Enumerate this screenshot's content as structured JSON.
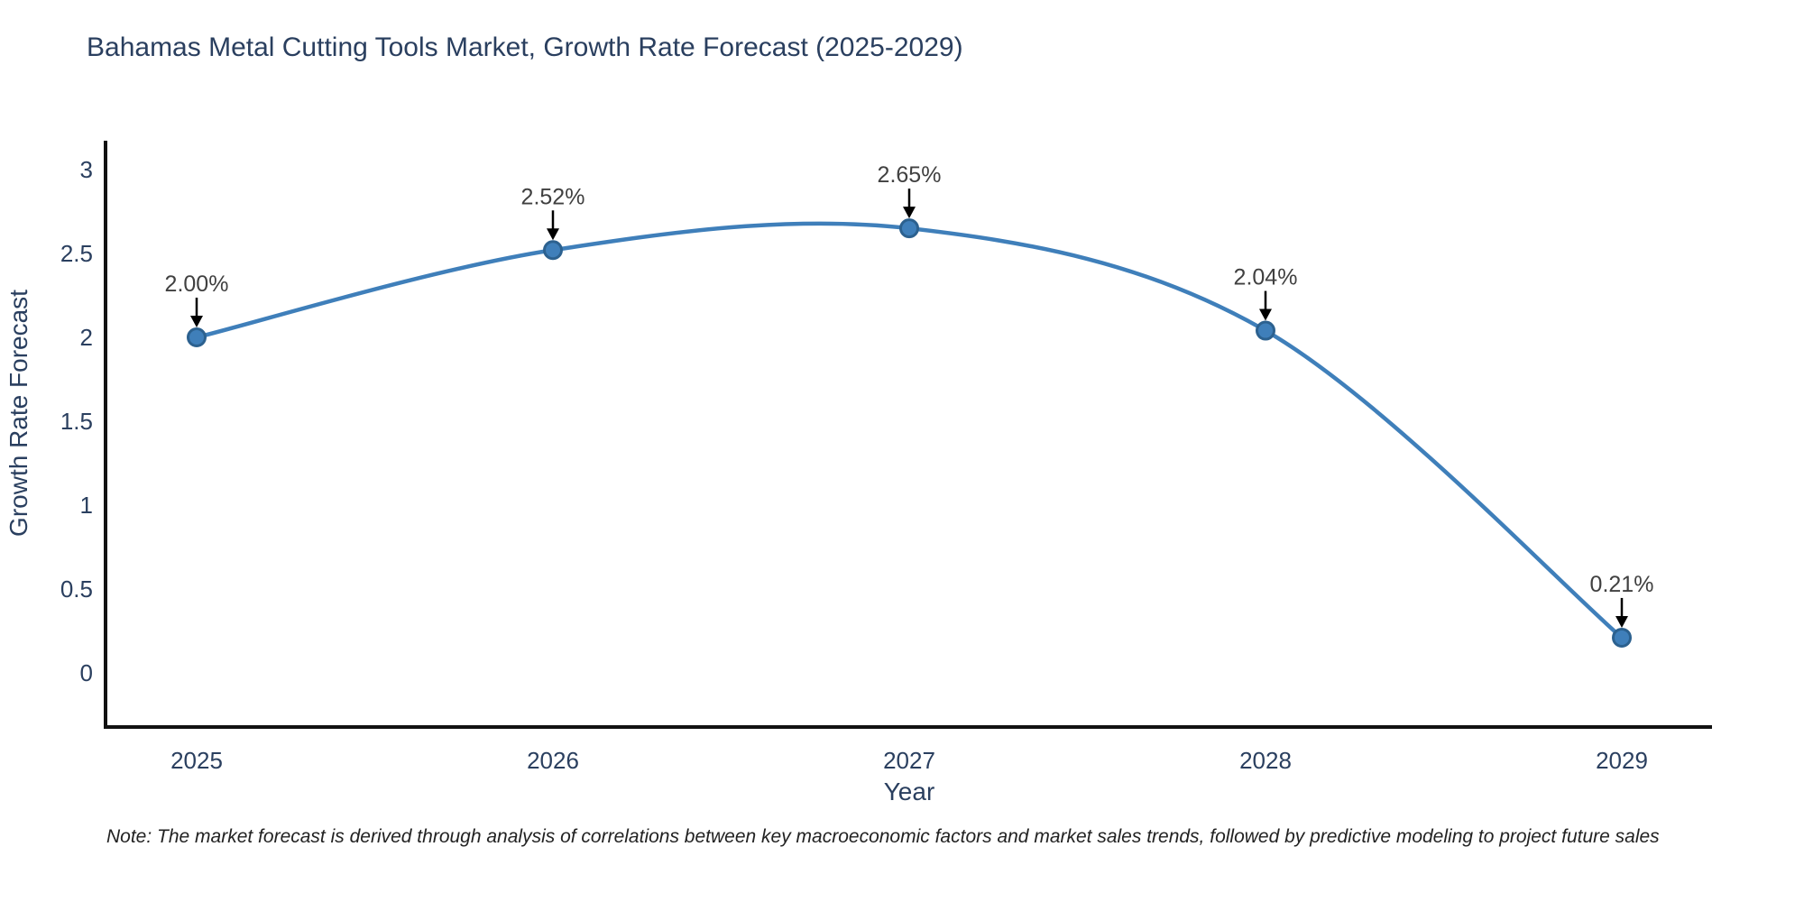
{
  "title": "Bahamas Metal Cutting Tools Market, Growth Rate Forecast (2025-2029)",
  "note": "Note: The market forecast is derived through analysis of correlations between key macroeconomic factors and market sales trends, followed by predictive modeling to project future sales",
  "chart_data": {
    "type": "line",
    "x": [
      "2025",
      "2026",
      "2027",
      "2028",
      "2029"
    ],
    "values": [
      2.0,
      2.52,
      2.65,
      2.04,
      0.21
    ],
    "point_labels": [
      "2.00%",
      "2.52%",
      "2.65%",
      "2.04%",
      "0.21%"
    ],
    "title": "Bahamas Metal Cutting Tools Market, Growth Rate Forecast (2025-2029)",
    "xlabel": "Year",
    "ylabel": "Growth Rate Forecast",
    "yticks": [
      0,
      0.5,
      1,
      1.5,
      2,
      2.5,
      3
    ],
    "ylim": [
      -0.32,
      3.15
    ],
    "grid": false,
    "legend": "none",
    "line_shape": "spline",
    "annotation_arrows": true
  },
  "colors": {
    "line": "#3f7fba",
    "marker_fill": "#3f7fba",
    "marker_edge": "#2c618f",
    "axis_line": "#111111",
    "axis_text": "#2a3f5f",
    "annotation_text": "#404040",
    "arrow": "#000000",
    "background": "#ffffff"
  }
}
